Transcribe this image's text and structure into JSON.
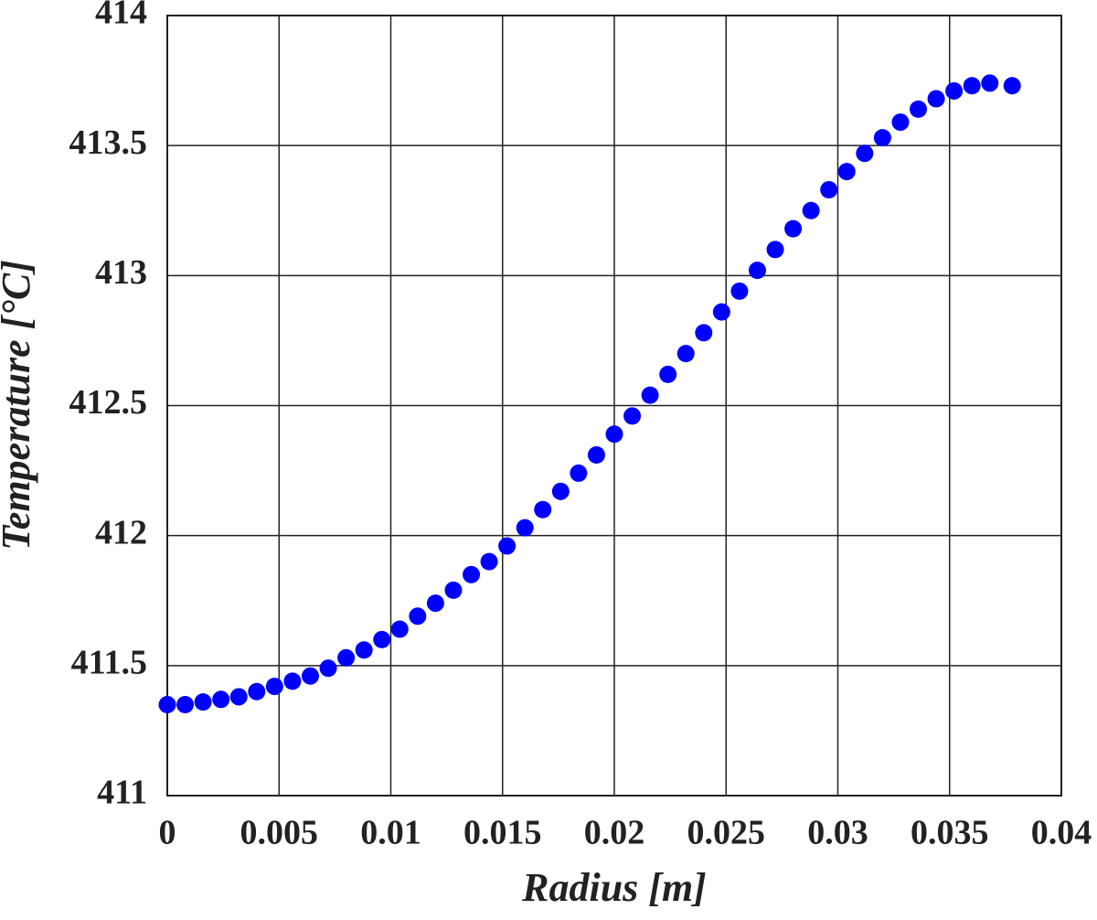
{
  "chart_data": {
    "type": "scatter",
    "x_label": "Radius [m]",
    "y_label": "Temperature [°C]",
    "xlim": [
      0,
      0.04
    ],
    "xticks": [
      0,
      0.005,
      0.01,
      0.015,
      0.02,
      0.025,
      0.03,
      0.035,
      0.04
    ],
    "ylim": [
      411,
      414
    ],
    "yticks": [
      411,
      411.5,
      412,
      412.5,
      413,
      413.5,
      414
    ],
    "grid": true,
    "color": "#0000ff",
    "x": [
      0,
      0.0008,
      0.0016,
      0.0024,
      0.0032,
      0.004,
      0.0048,
      0.0056,
      0.0064,
      0.0072,
      0.008,
      0.0088,
      0.0096,
      0.0104,
      0.0112,
      0.012,
      0.0128,
      0.0136,
      0.0144,
      0.0152,
      0.016,
      0.0168,
      0.0176,
      0.0184,
      0.0192,
      0.02,
      0.0208,
      0.0216,
      0.0224,
      0.0232,
      0.024,
      0.0248,
      0.0256,
      0.0264,
      0.0272,
      0.028,
      0.0288,
      0.0296,
      0.0304,
      0.0312,
      0.032,
      0.0328,
      0.0336,
      0.0344,
      0.0352,
      0.036,
      0.0368,
      0.0378
    ],
    "values": [
      411.35,
      411.35,
      411.36,
      411.37,
      411.38,
      411.4,
      411.42,
      411.44,
      411.46,
      411.49,
      411.53,
      411.56,
      411.6,
      411.64,
      411.69,
      411.74,
      411.79,
      411.85,
      411.9,
      411.96,
      412.03,
      412.1,
      412.17,
      412.24,
      412.31,
      412.39,
      412.46,
      412.54,
      412.62,
      412.7,
      412.78,
      412.86,
      412.94,
      413.02,
      413.1,
      413.18,
      413.25,
      413.33,
      413.4,
      413.47,
      413.53,
      413.59,
      413.64,
      413.68,
      413.71,
      413.73,
      413.74,
      413.73
    ]
  }
}
